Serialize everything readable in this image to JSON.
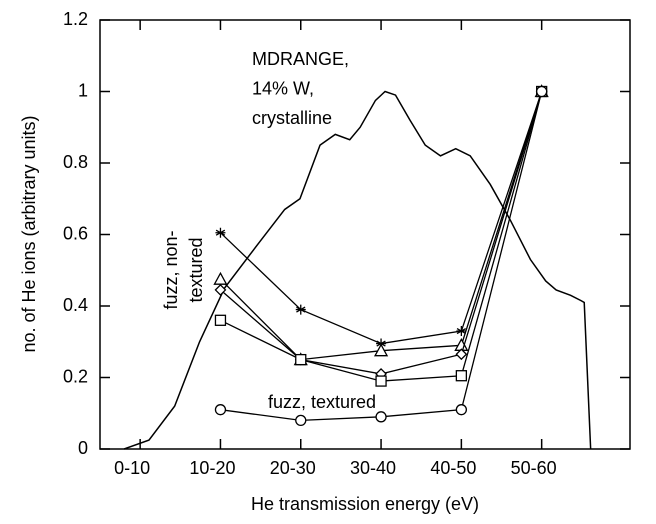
{
  "chart_data": {
    "type": "line",
    "xlabel": "He transmission energy (eV)",
    "ylabel": "no. of He ions (arbitrary units)",
    "categories": [
      "0-10",
      "10-20",
      "20-30",
      "30-40",
      "40-50",
      "50-60"
    ],
    "xlim": [
      -0.5,
      6.1
    ],
    "ylim": [
      0,
      1.2
    ],
    "yticks": [
      0,
      0.2,
      0.4,
      0.6,
      0.8,
      1,
      1.2
    ],
    "series": [
      {
        "marker": "star",
        "color": "#000000",
        "values": [
          null,
          0.605,
          0.39,
          0.295,
          0.33,
          1.0
        ]
      },
      {
        "marker": "triangle",
        "color": "#000000",
        "values": [
          null,
          0.475,
          0.25,
          0.275,
          0.29,
          1.0
        ]
      },
      {
        "marker": "diamond",
        "color": "#000000",
        "values": [
          null,
          0.445,
          0.25,
          0.21,
          0.265,
          1.0
        ]
      },
      {
        "marker": "square",
        "color": "#000000",
        "values": [
          null,
          0.36,
          0.25,
          0.19,
          0.205,
          1.0
        ]
      },
      {
        "marker": "circle",
        "color": "#000000",
        "values": [
          null,
          0.11,
          0.08,
          0.09,
          0.11,
          1.0
        ]
      }
    ],
    "curve": {
      "color": "#000000",
      "x": [
        -0.2,
        0.11,
        0.43,
        0.74,
        1.05,
        1.49,
        1.8,
        1.99,
        2.24,
        2.43,
        2.61,
        2.74,
        2.93,
        3.05,
        3.18,
        3.36,
        3.55,
        3.74,
        3.93,
        4.11,
        4.36,
        4.61,
        4.86,
        5.05,
        5.18,
        5.36,
        5.49,
        5.53,
        5.61
      ],
      "y": [
        0,
        0.025,
        0.12,
        0.3,
        0.45,
        0.58,
        0.67,
        0.7,
        0.85,
        0.88,
        0.865,
        0.9,
        0.975,
        1.0,
        0.99,
        0.92,
        0.85,
        0.82,
        0.84,
        0.82,
        0.74,
        0.64,
        0.53,
        0.47,
        0.445,
        0.43,
        0.415,
        0.41,
        0
      ]
    },
    "annotations": [
      [
        "MDRANGE,",
        "14% W,",
        "crystalline"
      ],
      [
        "fuzz, non-",
        "textured"
      ],
      [
        "fuzz, textured"
      ]
    ]
  }
}
